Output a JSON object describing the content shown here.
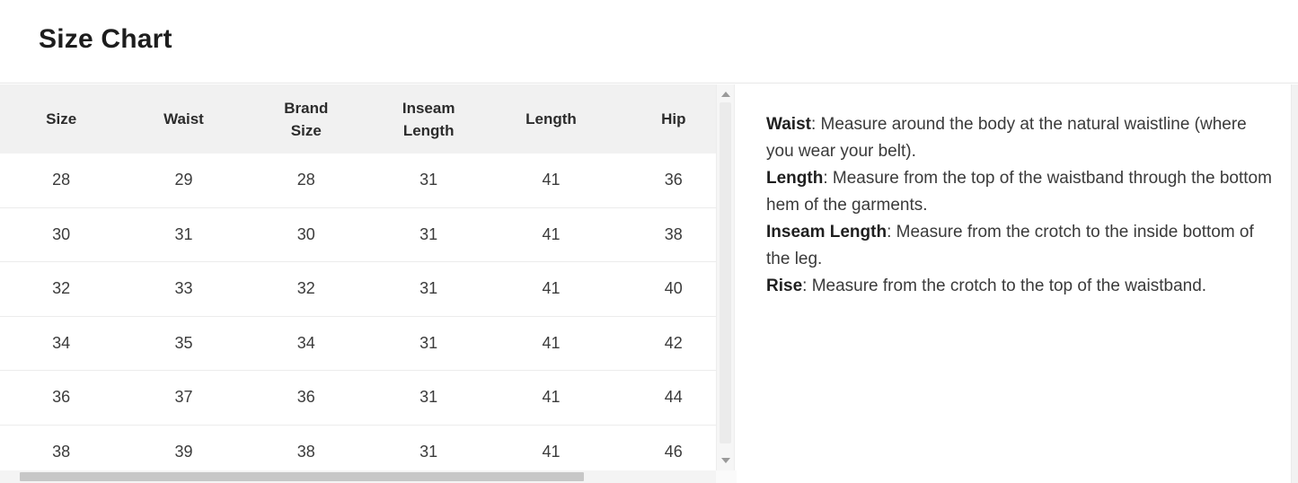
{
  "title": "Size Chart",
  "size_table": {
    "columns": [
      "Size",
      "Waist",
      "Brand Size",
      "Inseam Length",
      "Length",
      "Hip"
    ],
    "rows": [
      [
        "28",
        "29",
        "28",
        "31",
        "41",
        "36"
      ],
      [
        "30",
        "31",
        "30",
        "31",
        "41",
        "38"
      ],
      [
        "32",
        "33",
        "32",
        "31",
        "41",
        "40"
      ],
      [
        "34",
        "35",
        "34",
        "31",
        "41",
        "42"
      ],
      [
        "36",
        "37",
        "36",
        "31",
        "41",
        "44"
      ],
      [
        "38",
        "39",
        "38",
        "31",
        "41",
        "46"
      ]
    ]
  },
  "instructions": {
    "separator": ": ",
    "items": [
      {
        "term": "Waist",
        "text": "Measure around the body at the natural waistline (where you wear your belt)."
      },
      {
        "term": "Length",
        "text": "Measure from the top of the waistband through the bottom hem of the garments."
      },
      {
        "term": "Inseam Length",
        "text": "Measure from the crotch to the inside bottom of the leg."
      },
      {
        "term": "Rise",
        "text": "Measure from the crotch to the top of the waistband."
      }
    ]
  },
  "icons": {
    "table_scrollbar_up": "triangle-up-icon",
    "table_scrollbar_down": "triangle-down-icon",
    "page_scrollbar_up": "triangle-up-icon"
  },
  "colors": {
    "background": "#ffffff",
    "title_text": "#1d1d1d",
    "title_divider": "#e8e8e8",
    "table_header_bg": "#f1f1f1",
    "table_header_text": "#2c2c2c",
    "table_cell_text": "#3b3b3b",
    "row_divider": "#ececec",
    "scrollbar_track": "#f5f5f5",
    "scrollbar_thumb": "#c7c7c7",
    "scrollbar_arrow": "#9a9a9a",
    "body_text": "#3a3a3a"
  }
}
